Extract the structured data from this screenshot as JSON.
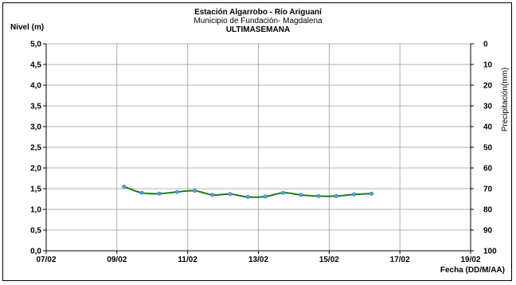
{
  "header": {
    "title": "Estación Algarrobo - Río Ariguaní",
    "subtitle": "Municipio de Fundación- Magdalena",
    "period": "ULTIMASEMANA"
  },
  "colors": {
    "series_line": "#1f7a1f",
    "series_marker": "#4fa6d9",
    "grid": "#9a9a9a",
    "axis": "#000000"
  },
  "chart_data": {
    "type": "line",
    "title": "Estación Algarrobo - Río Ariguaní",
    "ylabel": "Nivel (m)",
    "y2label": "Precipitación(mm)",
    "xlabel": "Fecha (DD/M/AA)",
    "x_tick_labels": [
      "07/02",
      "09/02",
      "11/02",
      "13/02",
      "15/02",
      "17/02",
      "19/02"
    ],
    "y_tick_labels": [
      "0,0",
      "0,5",
      "1,0",
      "1,5",
      "2,0",
      "2,5",
      "3,0",
      "3,5",
      "4,0",
      "4,5",
      "5,0"
    ],
    "y2_tick_labels": [
      "100",
      "90",
      "80",
      "70",
      "60",
      "50",
      "40",
      "30",
      "20",
      "10",
      "0"
    ],
    "xlim_days_from_0702": [
      0,
      12
    ],
    "ylim": [
      0,
      5
    ],
    "y2lim_inverted": [
      100,
      0
    ],
    "grid": true,
    "legend": "none",
    "series": [
      {
        "x_days_from_0702": [
          2.2,
          2.7,
          3.2,
          3.7,
          4.2,
          4.7,
          5.2,
          5.7,
          6.2,
          6.7,
          7.2,
          7.7,
          8.2,
          8.7,
          9.2
        ],
        "values": [
          1.55,
          1.4,
          1.38,
          1.42,
          1.45,
          1.35,
          1.37,
          1.3,
          1.31,
          1.4,
          1.35,
          1.32,
          1.32,
          1.36,
          1.38
        ]
      }
    ]
  }
}
